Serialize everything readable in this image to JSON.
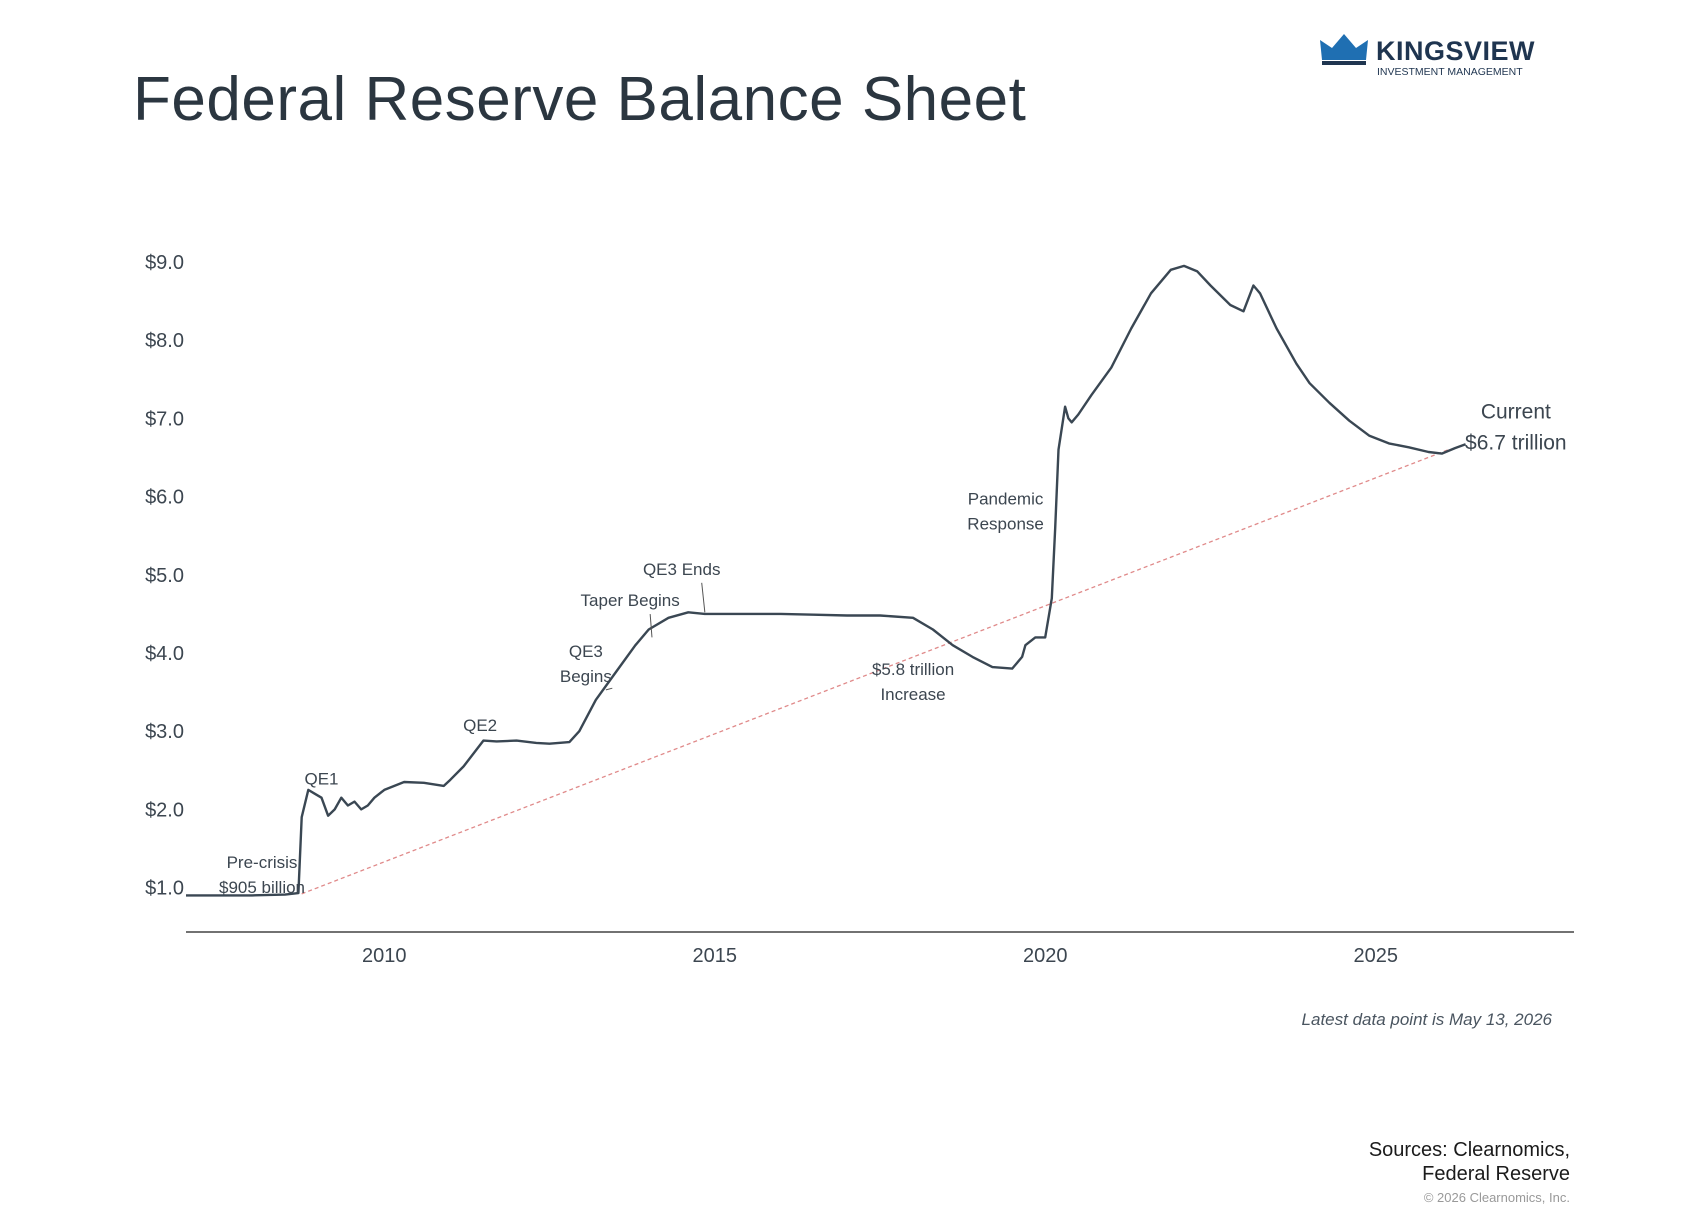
{
  "header": {
    "title": "Federal Reserve Balance Sheet",
    "logo_name": "KINGSVIEW",
    "logo_sub": "INVESTMENT MANAGEMENT",
    "logo_color": "#1f6fb2"
  },
  "chart_data": {
    "type": "line",
    "title": "",
    "xlabel": "",
    "ylabel": "",
    "xlim": [
      2007.0,
      2028.0
    ],
    "ylim": [
      0.5,
      9.0
    ],
    "grid": false,
    "x_ticks": [
      2010,
      2015,
      2020,
      2025
    ],
    "x_tick_labels": [
      "2010",
      "2015",
      "2020",
      "2025"
    ],
    "y_ticks": [
      1,
      2,
      3,
      4,
      5,
      6,
      7,
      8,
      9
    ],
    "y_tick_labels": [
      "$1.0",
      "$2.0",
      "$3.0",
      "$4.0",
      "$5.0",
      "$6.0",
      "$7.0",
      "$8.0",
      "$9.0"
    ],
    "line_color": "#3a4753",
    "trend_color": "#e08a8a",
    "series": [
      {
        "x": [
          2007.0,
          2007.5,
          2008.0,
          2008.5,
          2008.7,
          2008.75,
          2008.85,
          2008.95,
          2009.05,
          2009.15,
          2009.25,
          2009.35,
          2009.45,
          2009.55,
          2009.65,
          2009.75,
          2009.85,
          2010.0,
          2010.3,
          2010.6,
          2010.9,
          2011.0,
          2011.2,
          2011.5,
          2011.7,
          2012.0,
          2012.3,
          2012.5,
          2012.8,
          2012.95,
          2013.2,
          2013.5,
          2013.8,
          2014.0,
          2014.3,
          2014.6,
          2014.85,
          2015.0,
          2015.5,
          2016.0,
          2016.5,
          2017.0,
          2017.5,
          2018.0,
          2018.3,
          2018.6,
          2018.9,
          2019.2,
          2019.5,
          2019.65,
          2019.7,
          2019.85,
          2020.0,
          2020.1,
          2020.15,
          2020.2,
          2020.3,
          2020.35,
          2020.4,
          2020.5,
          2020.7,
          2021.0,
          2021.3,
          2021.6,
          2021.9,
          2022.1,
          2022.3,
          2022.5,
          2022.8,
          2023.0,
          2023.15,
          2023.2,
          2023.25,
          2023.5,
          2023.8,
          2024.0,
          2024.3,
          2024.6,
          2024.9,
          2025.2,
          2025.5,
          2025.8,
          2026.0,
          2026.2,
          2026.36
        ],
        "values": [
          0.9,
          0.9,
          0.9,
          0.91,
          0.93,
          1.9,
          2.25,
          2.2,
          2.15,
          1.92,
          2.0,
          2.15,
          2.05,
          2.1,
          2.0,
          2.05,
          2.15,
          2.25,
          2.35,
          2.34,
          2.3,
          2.38,
          2.55,
          2.88,
          2.87,
          2.88,
          2.85,
          2.84,
          2.86,
          3.0,
          3.4,
          3.75,
          4.1,
          4.3,
          4.45,
          4.52,
          4.5,
          4.5,
          4.5,
          4.5,
          4.49,
          4.48,
          4.48,
          4.45,
          4.3,
          4.1,
          3.95,
          3.82,
          3.8,
          3.95,
          4.1,
          4.2,
          4.2,
          4.7,
          5.6,
          6.6,
          7.15,
          7.0,
          6.95,
          7.05,
          7.3,
          7.65,
          8.15,
          8.6,
          8.9,
          8.95,
          8.88,
          8.7,
          8.45,
          8.37,
          8.7,
          8.65,
          8.6,
          8.15,
          7.7,
          7.45,
          7.2,
          6.97,
          6.78,
          6.68,
          6.63,
          6.57,
          6.55,
          6.62,
          6.67
        ]
      }
    ],
    "trend_line": {
      "x": [
        2008.75,
        2026.1
      ],
      "values": [
        0.92,
        6.6
      ]
    },
    "annotations": [
      {
        "text": [
          "Pre-crisis",
          "$905 billion"
        ],
        "x": 2008.15,
        "y": 1.25,
        "anchor": "middle"
      },
      {
        "text": [
          "QE1"
        ],
        "x": 2009.05,
        "y": 2.32,
        "anchor": "middle"
      },
      {
        "text": [
          "QE2"
        ],
        "x": 2011.45,
        "y": 3.0,
        "anchor": "middle"
      },
      {
        "text": [
          "QE3",
          "Begins"
        ],
        "x": 2013.05,
        "y": 3.95,
        "anchor": "middle",
        "pointer": [
          2013.45,
          3.55
        ]
      },
      {
        "text": [
          "Taper Begins"
        ],
        "x": 2013.72,
        "y": 4.6,
        "anchor": "middle",
        "pointer": [
          2014.05,
          4.2
        ]
      },
      {
        "text": [
          "QE3 Ends"
        ],
        "x": 2014.5,
        "y": 5.0,
        "anchor": "middle",
        "pointer": [
          2014.85,
          4.52
        ]
      },
      {
        "text": [
          "Pandemic",
          "Response"
        ],
        "x": 2019.4,
        "y": 5.9,
        "anchor": "middle"
      },
      {
        "text": [
          "$5.8 trillion",
          "Increase"
        ],
        "x": 2018.0,
        "y": 3.72,
        "anchor": "middle"
      },
      {
        "text": [
          "Current",
          "$6.7 trillion"
        ],
        "x": 2027.12,
        "y": 7.0,
        "anchor": "middle",
        "large": true
      }
    ]
  },
  "footer": {
    "latest_note": "Latest data point is May 13, 2026",
    "sources_line1": "Sources: Clearnomics,",
    "sources_line2": "Federal Reserve",
    "copyright": "© 2026 Clearnomics, Inc."
  }
}
